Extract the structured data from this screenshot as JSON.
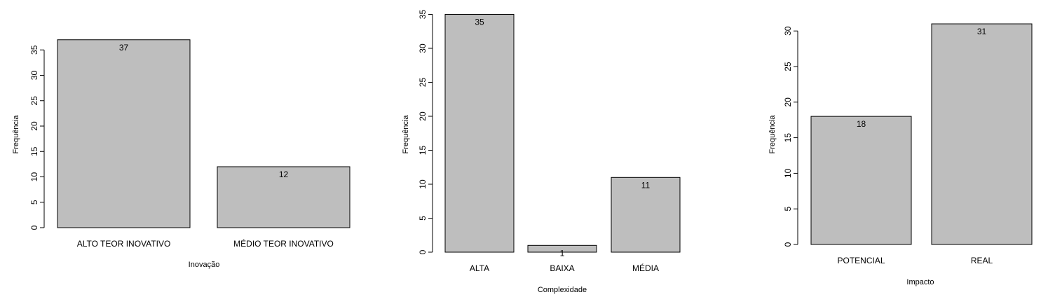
{
  "chart_data": [
    {
      "type": "bar",
      "categories": [
        "ALTO TEOR INOVATIVO",
        "MÉDIO TEOR INOVATIVO"
      ],
      "values": [
        37,
        12
      ],
      "data_labels": [
        "37",
        "12"
      ],
      "xlabel": "Inovação",
      "ylabel": "Frequência",
      "yticks": [
        0,
        5,
        10,
        15,
        20,
        25,
        30,
        35
      ],
      "ylim": [
        0,
        37
      ],
      "bar_color": "#bebebe",
      "grid": false,
      "legend": "none"
    },
    {
      "type": "bar",
      "categories": [
        "ALTA",
        "BAIXA",
        "MÉDIA"
      ],
      "values": [
        35,
        1,
        11
      ],
      "data_labels": [
        "35",
        "1",
        "11"
      ],
      "xlabel": "Complexidade",
      "ylabel": "Frequência",
      "yticks": [
        0,
        5,
        10,
        15,
        20,
        25,
        30,
        35
      ],
      "ylim": [
        0,
        35
      ],
      "bar_color": "#bebebe",
      "grid": false,
      "legend": "none"
    },
    {
      "type": "bar",
      "categories": [
        "POTENCIAL",
        "REAL"
      ],
      "values": [
        18,
        31
      ],
      "data_labels": [
        "18",
        "31"
      ],
      "xlabel": "Impacto",
      "ylabel": "Frequência",
      "yticks": [
        0,
        5,
        10,
        15,
        20,
        25,
        30
      ],
      "ylim": [
        0,
        31
      ],
      "bar_color": "#bebebe",
      "grid": false,
      "legend": "none"
    }
  ]
}
